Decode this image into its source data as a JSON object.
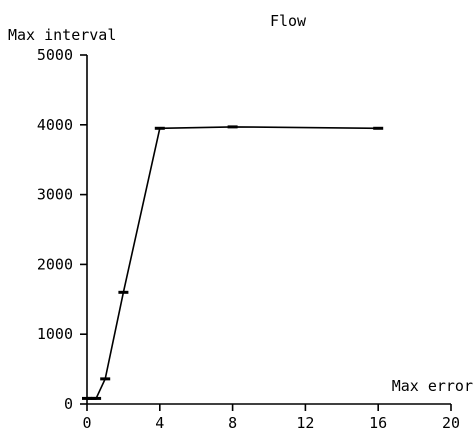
{
  "chart_data": {
    "type": "line",
    "title": "Flow",
    "xlabel": "Max error",
    "ylabel": "Max interval",
    "xlim": [
      0,
      20
    ],
    "ylim": [
      0,
      5000
    ],
    "x_ticks": [
      0,
      4,
      8,
      12,
      16,
      20
    ],
    "y_ticks": [
      0,
      1000,
      2000,
      3000,
      4000,
      5000
    ],
    "x_tick_labels": [
      "0",
      "4",
      "8",
      "12",
      "16",
      "20"
    ],
    "y_tick_labels": [
      "0",
      "1000",
      "2000",
      "3000",
      "4000",
      "5000"
    ],
    "grid": false,
    "legend": "none",
    "series": [
      {
        "x": [
          0,
          0.25,
          0.5,
          1,
          2,
          4,
          8,
          16
        ],
        "y": [
          80,
          80,
          80,
          360,
          1600,
          3950,
          3970,
          3950
        ]
      }
    ]
  }
}
